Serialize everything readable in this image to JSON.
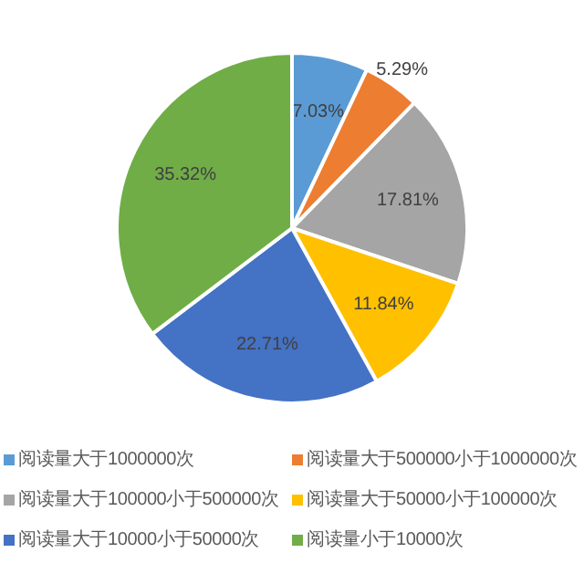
{
  "chart_data": {
    "type": "pie",
    "categories": [
      "阅读量大于1000000次",
      "阅读量大于500000小于1000000次",
      "阅读量大于100000小于500000次",
      "阅读量大于50000小于100000次",
      "阅读量大于10000小于50000次",
      "阅读量小于10000次"
    ],
    "values": [
      7.03,
      5.29,
      17.81,
      11.84,
      22.71,
      35.32
    ],
    "colors": [
      "#5b9bd5",
      "#ed7d31",
      "#a5a5a5",
      "#ffc000",
      "#4472c4",
      "#70ad47"
    ],
    "value_labels": [
      "7.03%",
      "5.29%",
      "17.81%",
      "11.84%",
      "22.71%",
      "35.32%"
    ],
    "legend": "bottom"
  }
}
